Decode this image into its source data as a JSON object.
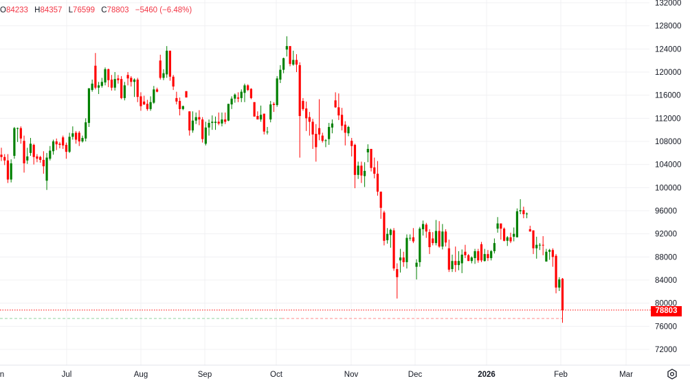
{
  "legend": {
    "open_label": "O",
    "open": "84233",
    "high_label": "H",
    "high": "84357",
    "low_label": "L",
    "low": "76599",
    "close_label": "C",
    "close": "78803",
    "change": "−5460 (−6.48%)"
  },
  "last_price_label": "78803",
  "settings_icon": "gear-icon",
  "colors": {
    "up": "#008000",
    "down": "#ff0000",
    "grid": "#f0f0f3",
    "last_price": "#ff0000"
  },
  "chart_data": {
    "type": "candlestick",
    "title": "",
    "grid": true,
    "y_axis_position": "right",
    "ylim": [
      70000,
      132000
    ],
    "y_ticks": [
      "132000",
      "128000",
      "124000",
      "120000",
      "116000",
      "112000",
      "108000",
      "104000",
      "100000",
      "96000",
      "92000",
      "88000",
      "84000",
      "80000",
      "76000",
      "72000"
    ],
    "x_ticks": [
      "n",
      "Jul",
      "Aug",
      "Sep",
      "Oct",
      "Nov",
      "Dec",
      "2026",
      "Feb",
      "Mar"
    ],
    "last_price": 78803,
    "dashed_reference_price": 77350,
    "candles_ohlc": [
      [
        105700,
        106900,
        104600,
        105300
      ],
      [
        105300,
        105800,
        103900,
        104700
      ],
      [
        104700,
        105800,
        100800,
        101400
      ],
      [
        101400,
        104900,
        100900,
        104200
      ],
      [
        105500,
        110500,
        105000,
        110300
      ],
      [
        110300,
        110400,
        107900,
        110300
      ],
      [
        110300,
        110600,
        107600,
        108500
      ],
      [
        108100,
        109000,
        102600,
        104200
      ],
      [
        104700,
        106900,
        104100,
        105400
      ],
      [
        106000,
        108600,
        105500,
        107600
      ],
      [
        107400,
        107600,
        104000,
        105300
      ],
      [
        105400,
        105800,
        104400,
        105000
      ],
      [
        105300,
        105500,
        104300,
        104800
      ],
      [
        104800,
        106300,
        102400,
        103700
      ],
      [
        101200,
        106000,
        99600,
        105200
      ],
      [
        105000,
        107200,
        104700,
        106400
      ],
      [
        106300,
        108300,
        105700,
        108000
      ],
      [
        108000,
        108500,
        106500,
        107500
      ],
      [
        107600,
        107900,
        106800,
        107400
      ],
      [
        108700,
        109000,
        106700,
        107300
      ],
      [
        107400,
        107800,
        105000,
        106200
      ],
      [
        106200,
        109500,
        106000,
        108800
      ],
      [
        108800,
        110600,
        108300,
        109400
      ],
      [
        109500,
        109800,
        107600,
        108300
      ],
      [
        109500,
        109800,
        107200,
        108000
      ],
      [
        108000,
        109000,
        107800,
        108600
      ],
      [
        108500,
        112000,
        108000,
        111300
      ],
      [
        111200,
        117200,
        110500,
        117200
      ],
      [
        116900,
        118700,
        116600,
        118000
      ],
      [
        121100,
        123300,
        117000,
        117300
      ],
      [
        117300,
        118300,
        116200,
        117700
      ],
      [
        117600,
        119000,
        117300,
        118300
      ],
      [
        118200,
        120800,
        117700,
        120500
      ],
      [
        120500,
        120600,
        117400,
        118600
      ],
      [
        118700,
        119500,
        116800,
        117300
      ],
      [
        117300,
        120000,
        116800,
        118800
      ],
      [
        118900,
        119500,
        118000,
        118600
      ],
      [
        118800,
        119300,
        115300,
        115500
      ],
      [
        115500,
        118300,
        115100,
        117700
      ],
      [
        119500,
        120000,
        117700,
        118900
      ],
      [
        119000,
        119300,
        117500,
        118300
      ],
      [
        118300,
        118900,
        115700,
        118700
      ],
      [
        118700,
        119000,
        114800,
        115700
      ],
      [
        115800,
        116500,
        113300,
        114100
      ],
      [
        114900,
        115900,
        114300,
        114400
      ],
      [
        114500,
        115200,
        113300,
        113600
      ],
      [
        113600,
        115800,
        113300,
        114800
      ],
      [
        114700,
        117600,
        114500,
        117000
      ],
      [
        117000,
        117300,
        116500,
        116600
      ],
      [
        122000,
        123000,
        118700,
        119000
      ],
      [
        119000,
        120500,
        118600,
        119800
      ],
      [
        119600,
        124500,
        119000,
        123700
      ],
      [
        123700,
        123700,
        118500,
        119200
      ],
      [
        119200,
        119500,
        116900,
        117500
      ],
      [
        115500,
        116600,
        114400,
        114900
      ],
      [
        115000,
        115600,
        112500,
        113600
      ],
      [
        113600,
        114200,
        113400,
        114100
      ],
      [
        116700,
        116700,
        115600,
        115600
      ],
      [
        113200,
        113200,
        109000,
        109900
      ],
      [
        109900,
        113200,
        109500,
        111600
      ],
      [
        111600,
        113000,
        111000,
        112200
      ],
      [
        112200,
        113400,
        110800,
        111800
      ],
      [
        111800,
        112200,
        107800,
        108400
      ],
      [
        107600,
        111400,
        107300,
        110400
      ],
      [
        110400,
        111800,
        109000,
        111200
      ],
      [
        111200,
        112500,
        110000,
        111400
      ],
      [
        111200,
        112300,
        110000,
        111400
      ],
      [
        111400,
        113000,
        110800,
        111100
      ],
      [
        111100,
        113000,
        110600,
        111800
      ],
      [
        111800,
        113000,
        111000,
        111400
      ],
      [
        111600,
        114500,
        111500,
        114500
      ],
      [
        114400,
        115800,
        113600,
        115400
      ],
      [
        115400,
        116300,
        114700,
        116100
      ],
      [
        115600,
        116500,
        114800,
        115400
      ],
      [
        115500,
        117000,
        114800,
        116600
      ],
      [
        116400,
        118000,
        114800,
        117700
      ],
      [
        117700,
        117900,
        116700,
        116900
      ],
      [
        117100,
        117200,
        115300,
        115500
      ],
      [
        114800,
        114800,
        112300,
        112300
      ],
      [
        112400,
        113200,
        111800,
        111800
      ],
      [
        111800,
        114200,
        111400,
        112600
      ],
      [
        112800,
        112800,
        109200,
        109700
      ],
      [
        109700,
        110500,
        109200,
        109700
      ],
      [
        111800,
        115000,
        111300,
        114400
      ],
      [
        114500,
        114800,
        113100,
        114300
      ],
      [
        114300,
        119300,
        114000,
        118900
      ],
      [
        118700,
        121200,
        118100,
        120400
      ],
      [
        120400,
        122500,
        119800,
        122400
      ],
      [
        123900,
        126200,
        122700,
        124500
      ],
      [
        124500,
        124500,
        121000,
        121400
      ],
      [
        121300,
        123700,
        121100,
        122100
      ],
      [
        122100,
        123100,
        120000,
        121300
      ],
      [
        121200,
        121700,
        105200,
        112400
      ],
      [
        115000,
        115500,
        113300,
        113600
      ],
      [
        113700,
        114900,
        109800,
        112000
      ],
      [
        112200,
        113100,
        109000,
        111400
      ],
      [
        111400,
        111900,
        106700,
        109200
      ],
      [
        109300,
        111000,
        104500,
        107000
      ],
      [
        110300,
        115300,
        108200,
        109200
      ],
      [
        109000,
        109500,
        107800,
        108100
      ],
      [
        108200,
        108400,
        107000,
        108200
      ],
      [
        108400,
        111200,
        107400,
        110500
      ],
      [
        110400,
        111800,
        109400,
        111100
      ],
      [
        115100,
        116500,
        113800,
        113900
      ],
      [
        113900,
        116300,
        111700,
        112500
      ],
      [
        112600,
        113800,
        109900,
        110700
      ],
      [
        110900,
        111500,
        107300,
        109500
      ],
      [
        109400,
        110700,
        108900,
        110500
      ],
      [
        108100,
        108600,
        105400,
        107200
      ],
      [
        107400,
        107600,
        99900,
        102200
      ],
      [
        102200,
        104500,
        101500,
        103800
      ],
      [
        103800,
        104500,
        100800,
        102100
      ],
      [
        102000,
        104400,
        100100,
        102900
      ],
      [
        106100,
        107500,
        104400,
        106700
      ],
      [
        106700,
        106700,
        102800,
        103400
      ],
      [
        103500,
        105200,
        101600,
        102400
      ],
      [
        102400,
        104600,
        98600,
        99300
      ],
      [
        99300,
        99300,
        94600,
        96500
      ],
      [
        95700,
        96000,
        90000,
        90800
      ],
      [
        90900,
        93000,
        90300,
        92000
      ],
      [
        91800,
        92900,
        89600,
        92700
      ],
      [
        92600,
        93000,
        85600,
        86000
      ],
      [
        85900,
        86900,
        80800,
        84500
      ],
      [
        87400,
        89400,
        85300,
        87900
      ],
      [
        87900,
        88900,
        86300,
        87100
      ],
      [
        87100,
        91900,
        86000,
        91300
      ],
      [
        91200,
        91900,
        90800,
        91300
      ],
      [
        91400,
        93000,
        90400,
        90700
      ],
      [
        86300,
        87600,
        84100,
        87000
      ],
      [
        87100,
        93200,
        86300,
        92900
      ],
      [
        92800,
        94300,
        91700,
        93700
      ],
      [
        93600,
        93900,
        91300,
        92400
      ],
      [
        92300,
        92800,
        88500,
        89700
      ],
      [
        91200,
        92300,
        90000,
        90400
      ],
      [
        90400,
        94400,
        90000,
        92500
      ],
      [
        92500,
        94200,
        89600,
        89800
      ],
      [
        89800,
        93700,
        89300,
        92400
      ],
      [
        92400,
        92800,
        89800,
        90500
      ],
      [
        89500,
        91000,
        85400,
        85800
      ],
      [
        85900,
        88400,
        85400,
        87300
      ],
      [
        87300,
        89800,
        85400,
        86600
      ],
      [
        86600,
        89000,
        85700,
        87300
      ],
      [
        86900,
        89300,
        85200,
        88400
      ],
      [
        88900,
        90100,
        87800,
        88300
      ],
      [
        88300,
        88500,
        87300,
        87300
      ],
      [
        87300,
        88100,
        86900,
        87900
      ],
      [
        87800,
        89400,
        86800,
        89000
      ],
      [
        89000,
        89400,
        87000,
        87400
      ],
      [
        90200,
        90600,
        87100,
        87400
      ],
      [
        87300,
        89400,
        87200,
        88500
      ],
      [
        88500,
        89200,
        87300,
        87800
      ],
      [
        87800,
        89200,
        87400,
        89000
      ],
      [
        89000,
        91200,
        88600,
        90400
      ],
      [
        92900,
        94900,
        92200,
        93800
      ],
      [
        93800,
        93800,
        91000,
        92900
      ],
      [
        92900,
        93100,
        90700,
        90800
      ],
      [
        90800,
        91600,
        89900,
        91400
      ],
      [
        91400,
        92200,
        90400,
        90700
      ],
      [
        91500,
        93100,
        90700,
        92000
      ],
      [
        91400,
        96400,
        91400,
        95900
      ],
      [
        95900,
        98000,
        95400,
        96100
      ],
      [
        96100,
        96700,
        94700,
        95400
      ],
      [
        95500,
        95700,
        94700,
        95500
      ],
      [
        92800,
        93400,
        92400,
        92400
      ],
      [
        92600,
        92600,
        88500,
        89500
      ],
      [
        89500,
        91500,
        87700,
        90100
      ],
      [
        90100,
        90400,
        89200,
        90100
      ],
      [
        90100,
        91600,
        88300,
        90000
      ],
      [
        87200,
        89400,
        87200,
        88900
      ],
      [
        88900,
        89400,
        87500,
        89200
      ],
      [
        89200,
        89500,
        86300,
        88000
      ],
      [
        88200,
        88500,
        81700,
        82700
      ],
      [
        82700,
        84500,
        82100,
        84100
      ],
      [
        84233,
        84357,
        76599,
        78803
      ]
    ]
  }
}
